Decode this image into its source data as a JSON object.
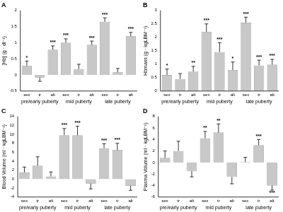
{
  "chart_data": [
    {
      "type": "bar",
      "title": "A",
      "ylabel": "[Hb] (g · dl⁻¹)",
      "group_labels": [
        "pre/early puberty",
        "mid puberty",
        "late puberty"
      ],
      "categories": [
        "sex",
        "tr",
        "alt",
        "sex",
        "tr",
        "alt",
        "sex",
        "tr",
        "alt"
      ],
      "values": [
        0.28,
        -0.08,
        0.78,
        1.0,
        0.18,
        0.93,
        1.65,
        0.08,
        1.2
      ],
      "errors": [
        0.15,
        0.12,
        0.12,
        0.12,
        0.15,
        0.12,
        0.12,
        0.12,
        0.12
      ],
      "significance": [
        "*",
        null,
        "***",
        "***",
        null,
        "***",
        "***",
        null,
        "***"
      ],
      "color": "#c8c8c8",
      "ylim": [
        -0.5,
        2
      ],
      "yticks": [
        -0.5,
        0,
        0.5,
        1,
        1.5,
        2
      ],
      "grid": false
    },
    {
      "type": "bar",
      "title": "B",
      "ylabel": "Hbmass (g · kgLBM⁻¹)",
      "group_labels": [
        "pre/early puberty",
        "mid puberty",
        "late puberty"
      ],
      "categories": [
        "sex",
        "tr",
        "alt",
        "sex",
        "tr",
        "alt",
        "sex",
        "tr",
        "alt"
      ],
      "values": [
        0.6,
        0.45,
        0.72,
        2.2,
        1.45,
        0.78,
        2.55,
        0.95,
        0.98
      ],
      "errors": [
        0.22,
        0.2,
        0.2,
        0.3,
        0.35,
        0.3,
        0.2,
        0.2,
        0.2
      ],
      "significance": [
        "*",
        null,
        "**",
        "***",
        "***",
        "*",
        "***",
        "***",
        "***"
      ],
      "color": "#c8c8c8",
      "ylim": [
        0,
        3
      ],
      "yticks": [
        0,
        0.5,
        1,
        1.5,
        2,
        2.5,
        3
      ],
      "grid": false
    },
    {
      "type": "bar",
      "title": "C",
      "ylabel": "Blood Volume (ml · kgLBM⁻¹)",
      "group_labels": [
        "pre/early puberty",
        "mid puberty",
        "late puberty"
      ],
      "categories": [
        "sex",
        "tr",
        "alt",
        "sex",
        "tr",
        "alt",
        "sex",
        "tr",
        "alt"
      ],
      "values": [
        1.5,
        3.0,
        0.6,
        9.8,
        9.8,
        -1.0,
        6.9,
        6.5,
        -1.5
      ],
      "errors": [
        1.2,
        2.0,
        1.0,
        1.5,
        2.0,
        1.2,
        1.0,
        1.5,
        1.0
      ],
      "significance": [
        null,
        null,
        null,
        "***",
        "***",
        null,
        "***",
        "***",
        null
      ],
      "color": "#c8c8c8",
      "ylim": [
        -4,
        14
      ],
      "yticks": [
        -4,
        -2,
        0,
        2,
        4,
        6,
        8,
        10,
        12,
        14
      ],
      "grid": false
    },
    {
      "type": "bar",
      "title": "D",
      "ylabel": "Plasma Volume (ml · kgLBM⁻¹)",
      "group_labels": [
        "pre/early puberty",
        "mid puberty",
        "late puberty"
      ],
      "categories": [
        "sex",
        "tr",
        "alt",
        "sex",
        "tr",
        "alt",
        "sex",
        "tr",
        "alt"
      ],
      "values": [
        0.8,
        2.0,
        -1.5,
        4.2,
        5.2,
        -2.5,
        0.1,
        3.0,
        -4.0
      ],
      "errors": [
        1.2,
        1.7,
        1.0,
        1.2,
        1.5,
        1.2,
        0.8,
        1.0,
        0.8
      ],
      "significance": [
        null,
        null,
        null,
        "**",
        "**",
        null,
        null,
        "***",
        "***"
      ],
      "color": "#c8c8c8",
      "ylim": [
        -6,
        8
      ],
      "yticks": [
        -6,
        -4,
        -2,
        0,
        2,
        4,
        6,
        8
      ],
      "grid": false
    }
  ]
}
